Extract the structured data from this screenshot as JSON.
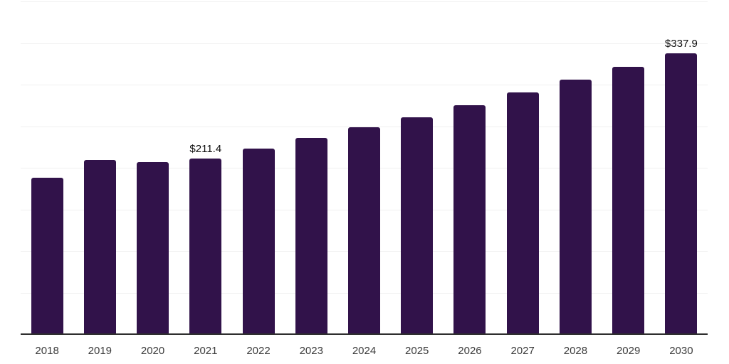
{
  "chart_data": {
    "type": "bar",
    "title": "",
    "xlabel": "",
    "ylabel": "",
    "categories": [
      "2018",
      "2019",
      "2020",
      "2021",
      "2022",
      "2023",
      "2024",
      "2025",
      "2026",
      "2027",
      "2028",
      "2029",
      "2030"
    ],
    "values": [
      188.0,
      209.4,
      207.1,
      211.4,
      223.3,
      235.5,
      249.0,
      261.1,
      275.4,
      290.4,
      305.8,
      321.5,
      337.9
    ],
    "data_labels": [
      {
        "index": 3,
        "text": "$211.4"
      },
      {
        "index": 12,
        "text": "$337.9"
      }
    ],
    "ylim": [
      0,
      400
    ],
    "grid": true,
    "grid_step": 50,
    "legend": false,
    "y_axis_labels_visible": false,
    "colors": {
      "bar": "#31124a",
      "gridline": "#f0f0f0",
      "axis_line": "#2e2e2e",
      "tick_label": "#3c3c3c",
      "data_label": "#0d0d0d",
      "background": "#ffffff"
    }
  }
}
